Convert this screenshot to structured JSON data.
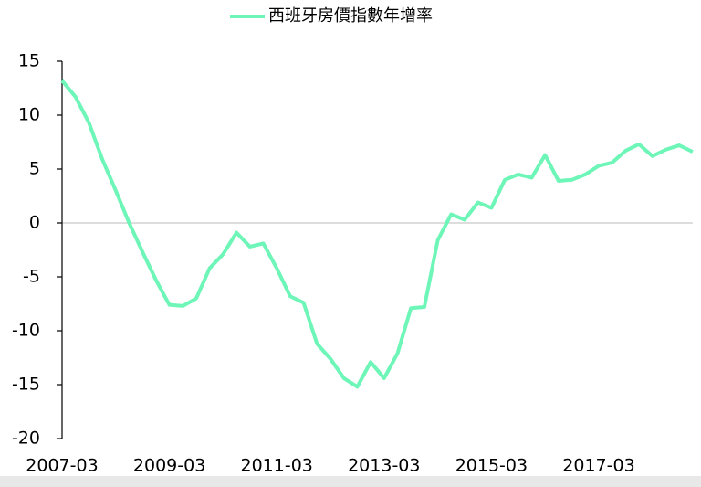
{
  "chart_data": {
    "type": "line",
    "categories": [
      "2007-03",
      null,
      null,
      null,
      null,
      null,
      null,
      null,
      "2009-03",
      null,
      null,
      null,
      null,
      null,
      null,
      null,
      "2011-03",
      null,
      null,
      null,
      null,
      null,
      null,
      null,
      "2013-03",
      null,
      null,
      null,
      null,
      null,
      null,
      null,
      "2015-03",
      null,
      null,
      null,
      null,
      null,
      null,
      null,
      "2017-03",
      null,
      null,
      null,
      null,
      null,
      null,
      null
    ],
    "series": [
      {
        "name": "西班牙房價指數年增率",
        "color": "#6ef5b8",
        "values": [
          13.2,
          11.7,
          9.3,
          5.9,
          3.0,
          0.0,
          -2.7,
          -5.3,
          -7.6,
          -7.7,
          -7.0,
          -4.2,
          -2.9,
          -0.9,
          -2.2,
          -1.9,
          -4.2,
          -6.8,
          -7.4,
          -11.2,
          -12.6,
          -14.4,
          -15.2,
          -12.9,
          -14.4,
          -12.1,
          -7.9,
          -7.8,
          -1.6,
          0.8,
          0.3,
          1.9,
          1.4,
          4.0,
          4.5,
          4.2,
          6.3,
          3.9,
          4.0,
          4.5,
          5.3,
          5.6,
          6.7,
          7.3,
          6.2,
          6.8,
          7.2,
          6.6
        ]
      }
    ],
    "ylim": [
      -20,
      15
    ],
    "yticks": [
      -20,
      -15,
      -10,
      -5,
      0,
      5,
      10,
      15
    ],
    "legend": "top"
  }
}
